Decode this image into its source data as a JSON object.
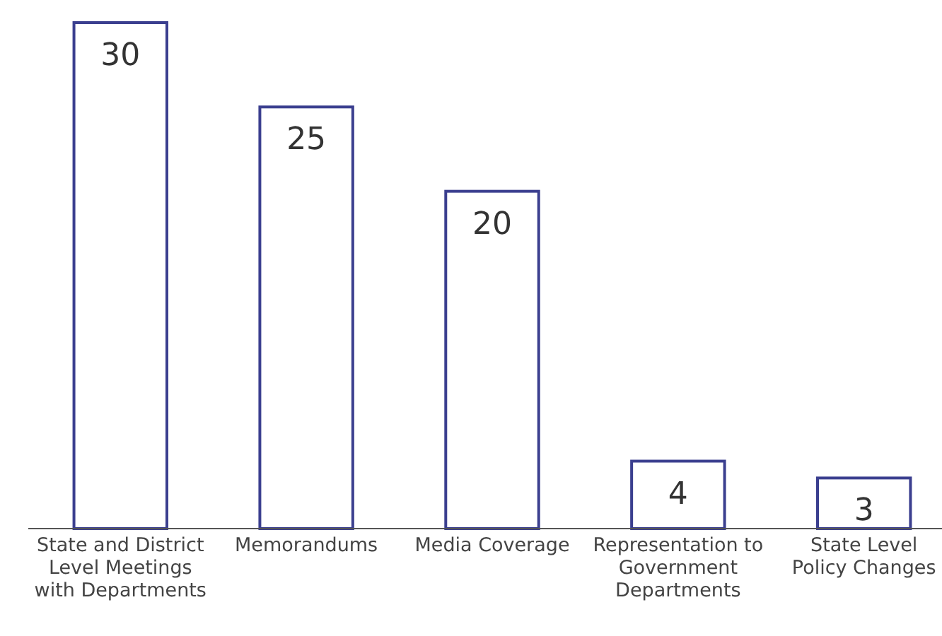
{
  "chart_data": {
    "type": "bar",
    "categories": [
      "State and District Level Meetings with Departments",
      "Memorandums",
      "Media Coverage",
      "Representation to Government Departments",
      "State Level Policy Changes"
    ],
    "values": [
      30,
      25,
      20,
      4,
      3
    ],
    "color": "#3b3f8f",
    "data_labels": true
  }
}
